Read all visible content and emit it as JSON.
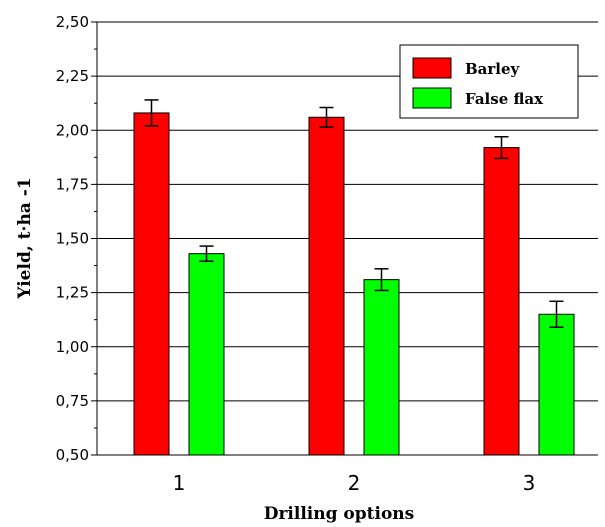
{
  "chart_data": {
    "type": "bar",
    "xlabel": "Drilling options",
    "ylabel": "Yield, t·ha -1",
    "ylim": [
      0.5,
      2.5
    ],
    "yticks": [
      "0,50",
      "0,75",
      "1,00",
      "1,25",
      "1,50",
      "1,75",
      "2,00",
      "2,25",
      "2,50"
    ],
    "categories": [
      "1",
      "2",
      "3"
    ],
    "series": [
      {
        "name": "Barley",
        "color": "#ff0000",
        "values": [
          2.08,
          2.06,
          1.92
        ],
        "errors": [
          0.06,
          0.045,
          0.05
        ]
      },
      {
        "name": "False flax",
        "color": "#00ff00",
        "values": [
          1.43,
          1.31,
          1.15
        ],
        "errors": [
          0.035,
          0.05,
          0.06
        ]
      }
    ],
    "grid": true,
    "legend_position": "top-right"
  }
}
